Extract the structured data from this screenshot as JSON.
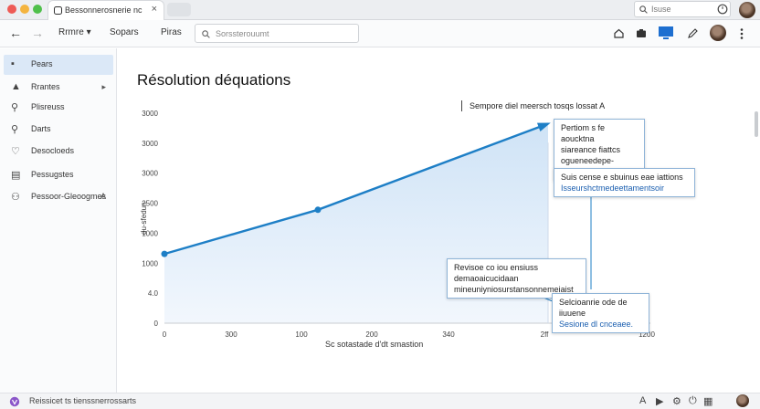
{
  "window": {
    "tab_title": "Bessonnerosnerie nc",
    "tab_close": "×",
    "search_placeholder": "Isuse"
  },
  "toolbar": {
    "back": "←",
    "forward": "→",
    "menus": [
      {
        "label": "Rrmre",
        "arrow": "▾"
      },
      {
        "label": "Sopars"
      },
      {
        "label": "Piras"
      }
    ],
    "search_placeholder": "Sorssterouumt"
  },
  "sidebar": {
    "items": [
      {
        "icon": "▪",
        "label": "Pears",
        "active": true
      },
      {
        "icon": "▲",
        "label": "Rrantes",
        "chevron": "▸"
      },
      {
        "icon": "⚲",
        "label": "Plisreuss"
      },
      {
        "icon": "⚲",
        "label": "Darts"
      },
      {
        "icon": "♡",
        "label": "Desocloeds"
      },
      {
        "icon": "▤",
        "label": "Pessugstes"
      },
      {
        "icon": "⚇",
        "label": "Pessoor-Gleoogmes",
        "chevron": "A"
      }
    ]
  },
  "main": {
    "title": "Résolution déquations",
    "legend_label": "Sempore diel meersch tosqs lossat A"
  },
  "chart_data": {
    "type": "area",
    "title": "",
    "xlabel": "Sc sotastade d'dt smastion",
    "ylabel": "du-sfedun",
    "x_ticks": [
      "0",
      "300",
      "100",
      "200",
      "340",
      "2ff",
      "1200"
    ],
    "y_ticks": [
      "0",
      "4.0",
      "1000",
      "1000",
      "2500",
      "3000",
      "3000",
      "3000"
    ],
    "series": [
      {
        "points": [
          [
            0,
            0.33
          ],
          [
            0.4,
            0.54
          ],
          [
            1.0,
            0.95
          ]
        ],
        "color": "#1e7fc6"
      }
    ],
    "marker_points": [
      [
        0,
        0.33
      ],
      [
        0.4,
        0.54
      ]
    ],
    "grid": false
  },
  "callouts": [
    {
      "lines": [
        "Pertiom s fe aoucktna",
        "siareance fiattcs",
        "ogueneedepe-detamnak"
      ]
    },
    {
      "lines": [
        "Suis cense e sbuinus eae iattions"
      ],
      "blue": "Isseurshctmedeettamentsoir"
    },
    {
      "lines": [
        "Revisoe co iou ensiuss demaoaicucidaan",
        "mineuniyniosurstansonnemeiaist"
      ]
    },
    {
      "lines": [
        "Selcioanrie ode de iiuuene"
      ],
      "blue": "Sesione dl cnceaee."
    }
  ],
  "statusbar": {
    "label": "Reissicet ts tienssnerrossarts"
  },
  "colors": {
    "accent": "#1e7fc6",
    "area_top": "#cfe3f6",
    "area_bottom": "#f2f7fd"
  }
}
